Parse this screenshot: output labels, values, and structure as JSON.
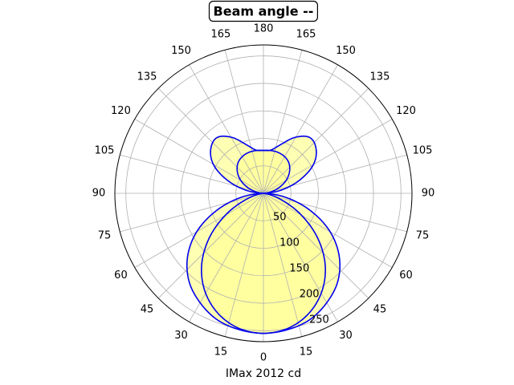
{
  "chart_data": {
    "type": "polar",
    "title": "Beam angle --",
    "xlabel": "IMax 2012 cd",
    "angle_tick_labels": [
      "0",
      "15",
      "30",
      "45",
      "60",
      "75",
      "90",
      "105",
      "120",
      "135",
      "150",
      "165",
      "180",
      "165",
      "150",
      "135",
      "120",
      "105",
      "90",
      "75",
      "60",
      "45",
      "30",
      "15"
    ],
    "radial_tick_labels": [
      "50",
      "100",
      "150",
      "200",
      "250"
    ],
    "radial_ticks": [
      50,
      100,
      150,
      200,
      250
    ],
    "rlim": [
      0,
      270
    ],
    "grid": true,
    "colors": {
      "line": "#0000ee",
      "fill": "#ffff99",
      "grid": "#b0b0b0"
    },
    "series": [
      {
        "angles": [
          0,
          10,
          20,
          30,
          40,
          50,
          60,
          70,
          80,
          90,
          100,
          110,
          120,
          130,
          140,
          150,
          160,
          170,
          180
        ],
        "values": [
          255,
          252,
          245,
          230,
          210,
          180,
          140,
          90,
          40,
          0,
          32,
          70,
          105,
          125,
          132,
          118,
          95,
          80,
          78
        ]
      },
      {
        "angles": [
          0,
          10,
          20,
          30,
          40,
          50,
          60,
          70,
          80,
          90,
          100,
          110,
          120,
          130,
          140,
          150,
          160,
          170,
          180
        ],
        "values": [
          255,
          250,
          235,
          210,
          175,
          130,
          80,
          35,
          8,
          0,
          12,
          30,
          48,
          62,
          72,
          77,
          79,
          79,
          78
        ]
      }
    ]
  }
}
